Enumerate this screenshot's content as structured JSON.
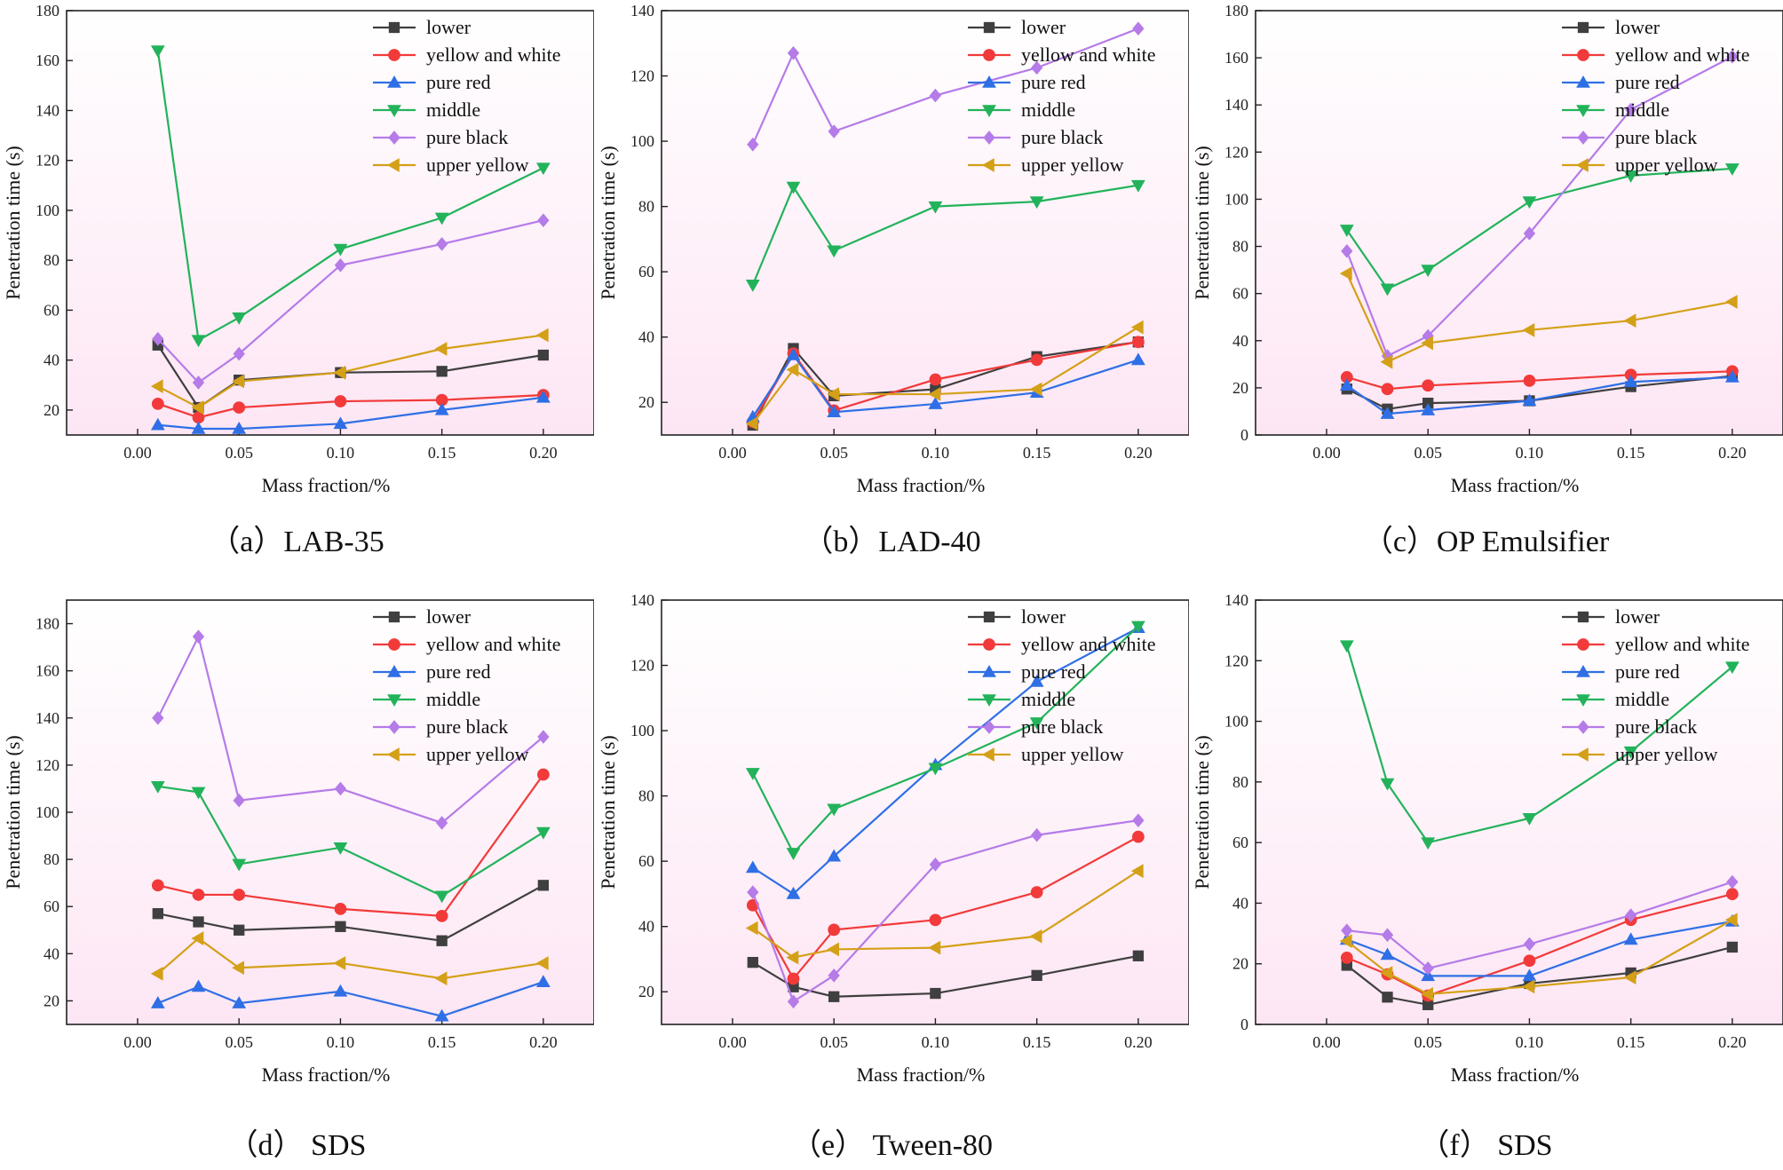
{
  "figure": {
    "background": "#ffffff"
  },
  "style": {
    "plot_bg_top": "#ffffff",
    "plot_bg_bottom": "#fde6f4",
    "series_colors": {
      "lower": "#3f3f3f",
      "yellow and white": "#f23a3a",
      "pure red": "#2f6fe6",
      "middle": "#22b35a",
      "pure black": "#b57be8",
      "upper yellow": "#d4a017"
    },
    "series_markers": {
      "lower": "square",
      "yellow and white": "circle",
      "pure red": "triangle-up",
      "middle": "triangle-down",
      "pure black": "diamond",
      "upper yellow": "triangle-left"
    }
  },
  "chart_data": [
    {
      "type": "line",
      "caption": "（a）LAB-35",
      "xlabel": "Mass fraction/%",
      "ylabel": "Penetration time (s)",
      "xlim": [
        -0.035,
        0.225
      ],
      "ylim": [
        10,
        180
      ],
      "xticks": [
        "0.00",
        "0.05",
        "0.10",
        "0.15",
        "0.20"
      ],
      "yticks": [
        "20",
        "40",
        "60",
        "80",
        "100",
        "120",
        "140",
        "160",
        "180"
      ],
      "legend": "top-right",
      "x": [
        0.01,
        0.03,
        0.05,
        0.1,
        0.15,
        0.2
      ],
      "series": [
        {
          "name": "lower",
          "values": [
            46,
            21,
            32,
            35,
            35.5,
            42
          ]
        },
        {
          "name": "yellow and white",
          "values": [
            22.5,
            17,
            21,
            23.5,
            24,
            26
          ]
        },
        {
          "name": "pure red",
          "values": [
            14,
            12.5,
            12.5,
            14.5,
            20,
            25
          ]
        },
        {
          "name": "middle",
          "values": [
            164,
            48,
            57,
            84.5,
            97,
            117
          ]
        },
        {
          "name": "pure black",
          "values": [
            48.5,
            31,
            42.5,
            78,
            86.5,
            96
          ]
        },
        {
          "name": "upper yellow",
          "values": [
            29.5,
            21,
            31.5,
            35,
            44.5,
            50
          ]
        }
      ]
    },
    {
      "type": "line",
      "caption": "（b）LAD-40",
      "xlabel": "Mass fraction/%",
      "ylabel": "Penetration time (s)",
      "xlim": [
        -0.035,
        0.225
      ],
      "ylim": [
        10,
        140
      ],
      "xticks": [
        "0.00",
        "0.05",
        "0.10",
        "0.15",
        "0.20"
      ],
      "yticks": [
        "20",
        "40",
        "60",
        "80",
        "100",
        "120",
        "140"
      ],
      "legend": "top-right",
      "x": [
        0.01,
        0.03,
        0.05,
        0.1,
        0.15,
        0.2
      ],
      "series": [
        {
          "name": "lower",
          "values": [
            13,
            36.5,
            22,
            24,
            34,
            38.5
          ]
        },
        {
          "name": "yellow and white",
          "values": [
            14,
            35,
            17.5,
            27,
            33,
            38.5
          ]
        },
        {
          "name": "pure red",
          "values": [
            15.5,
            34.5,
            17,
            19.5,
            23,
            33
          ]
        },
        {
          "name": "middle",
          "values": [
            56,
            86,
            66.5,
            80,
            81.5,
            86.5
          ]
        },
        {
          "name": "pure black",
          "values": [
            99,
            127,
            103,
            114,
            122.5,
            134.5
          ]
        },
        {
          "name": "upper yellow",
          "values": [
            13.5,
            30,
            22.5,
            22.5,
            24,
            43
          ]
        }
      ]
    },
    {
      "type": "line",
      "caption": "（c）OP Emulsifier",
      "xlabel": "Mass fraction/%",
      "ylabel": "Penetration time (s)",
      "xlim": [
        -0.035,
        0.225
      ],
      "ylim": [
        0,
        180
      ],
      "xticks": [
        "0.00",
        "0.05",
        "0.10",
        "0.15",
        "0.20"
      ],
      "yticks": [
        "0",
        "20",
        "40",
        "60",
        "80",
        "100",
        "120",
        "140",
        "160",
        "180"
      ],
      "legend": "top-right",
      "x": [
        0.01,
        0.03,
        0.05,
        0.1,
        0.15,
        0.2
      ],
      "series": [
        {
          "name": "lower",
          "values": [
            19.5,
            11,
            13.5,
            14.5,
            20.5,
            25
          ]
        },
        {
          "name": "yellow and white",
          "values": [
            24.5,
            19.5,
            21,
            23,
            25.5,
            27
          ]
        },
        {
          "name": "pure red",
          "values": [
            21,
            9,
            10.5,
            14.5,
            22.5,
            24.5
          ]
        },
        {
          "name": "middle",
          "values": [
            87,
            62,
            70,
            99,
            110,
            113
          ]
        },
        {
          "name": "pure black",
          "values": [
            78,
            33.5,
            42,
            85.5,
            138,
            160.5
          ]
        },
        {
          "name": "upper yellow",
          "values": [
            68.5,
            31,
            39,
            44.5,
            48.5,
            56.5
          ]
        }
      ]
    },
    {
      "type": "line",
      "caption": "（d） SDS",
      "xlabel": "Mass fraction/%",
      "ylabel": "Penetration time (s)",
      "xlim": [
        -0.035,
        0.225
      ],
      "ylim": [
        10,
        190
      ],
      "xticks": [
        "0.00",
        "0.05",
        "0.10",
        "0.15",
        "0.20"
      ],
      "yticks": [
        "20",
        "40",
        "60",
        "80",
        "100",
        "120",
        "140",
        "160",
        "180"
      ],
      "legend": "top-right",
      "x": [
        0.01,
        0.03,
        0.05,
        0.1,
        0.15,
        0.2
      ],
      "series": [
        {
          "name": "lower",
          "values": [
            57,
            53.5,
            50,
            51.5,
            45.5,
            69
          ]
        },
        {
          "name": "yellow and white",
          "values": [
            69,
            65,
            65,
            59,
            56,
            116
          ]
        },
        {
          "name": "pure red",
          "values": [
            19,
            26,
            19,
            24,
            13.5,
            28
          ]
        },
        {
          "name": "middle",
          "values": [
            111,
            108.5,
            78,
            85,
            64.5,
            91.5
          ]
        },
        {
          "name": "pure black",
          "values": [
            140,
            174.5,
            105,
            110,
            95.5,
            132
          ]
        },
        {
          "name": "upper yellow",
          "values": [
            31.5,
            46.5,
            34,
            36,
            29.5,
            36
          ]
        }
      ]
    },
    {
      "type": "line",
      "caption": "（e） Tween-80",
      "xlabel": "Mass fraction/%",
      "ylabel": "Penetration time (s)",
      "xlim": [
        -0.035,
        0.225
      ],
      "ylim": [
        10,
        140
      ],
      "xticks": [
        "0.00",
        "0.05",
        "0.10",
        "0.15",
        "0.20"
      ],
      "yticks": [
        "20",
        "40",
        "60",
        "80",
        "100",
        "120",
        "140"
      ],
      "legend": "top-right",
      "x": [
        0.01,
        0.03,
        0.05,
        0.1,
        0.15,
        0.2
      ],
      "series": [
        {
          "name": "lower",
          "values": [
            29,
            21.5,
            18.5,
            19.5,
            25,
            31
          ]
        },
        {
          "name": "yellow and white",
          "values": [
            46.5,
            24,
            39,
            42,
            50.5,
            67.5
          ]
        },
        {
          "name": "pure red",
          "values": [
            58,
            50,
            61.5,
            89.5,
            115,
            131.5
          ]
        },
        {
          "name": "middle",
          "values": [
            87,
            62.5,
            76,
            88.5,
            102.5,
            132
          ]
        },
        {
          "name": "pure black",
          "values": [
            50.5,
            17,
            25,
            59,
            68,
            72.5
          ]
        },
        {
          "name": "upper yellow",
          "values": [
            39.5,
            30.5,
            33,
            33.5,
            37,
            57
          ]
        }
      ]
    },
    {
      "type": "line",
      "caption": "（f） SDS",
      "xlabel": "Mass fraction/%",
      "ylabel": "Penetration time (s)",
      "xlim": [
        -0.035,
        0.225
      ],
      "ylim": [
        0,
        140
      ],
      "xticks": [
        "0.00",
        "0.05",
        "0.10",
        "0.15",
        "0.20"
      ],
      "yticks": [
        "0",
        "20",
        "40",
        "60",
        "80",
        "100",
        "120",
        "140"
      ],
      "legend": "top-right",
      "x": [
        0.01,
        0.03,
        0.05,
        0.1,
        0.15,
        0.2
      ],
      "series": [
        {
          "name": "lower",
          "values": [
            19.5,
            9,
            6.5,
            13.5,
            17,
            25.5
          ]
        },
        {
          "name": "yellow and white",
          "values": [
            22,
            16.5,
            9.5,
            21,
            34.5,
            43
          ]
        },
        {
          "name": "pure red",
          "values": [
            28,
            23,
            16,
            16,
            28,
            34
          ]
        },
        {
          "name": "middle",
          "values": [
            125,
            79.5,
            60,
            68,
            90,
            118
          ]
        },
        {
          "name": "pure black",
          "values": [
            31,
            29.5,
            18.5,
            26.5,
            36,
            47
          ]
        },
        {
          "name": "upper yellow",
          "values": [
            27.5,
            17,
            10,
            12.5,
            15.5,
            34.5
          ]
        }
      ]
    }
  ]
}
